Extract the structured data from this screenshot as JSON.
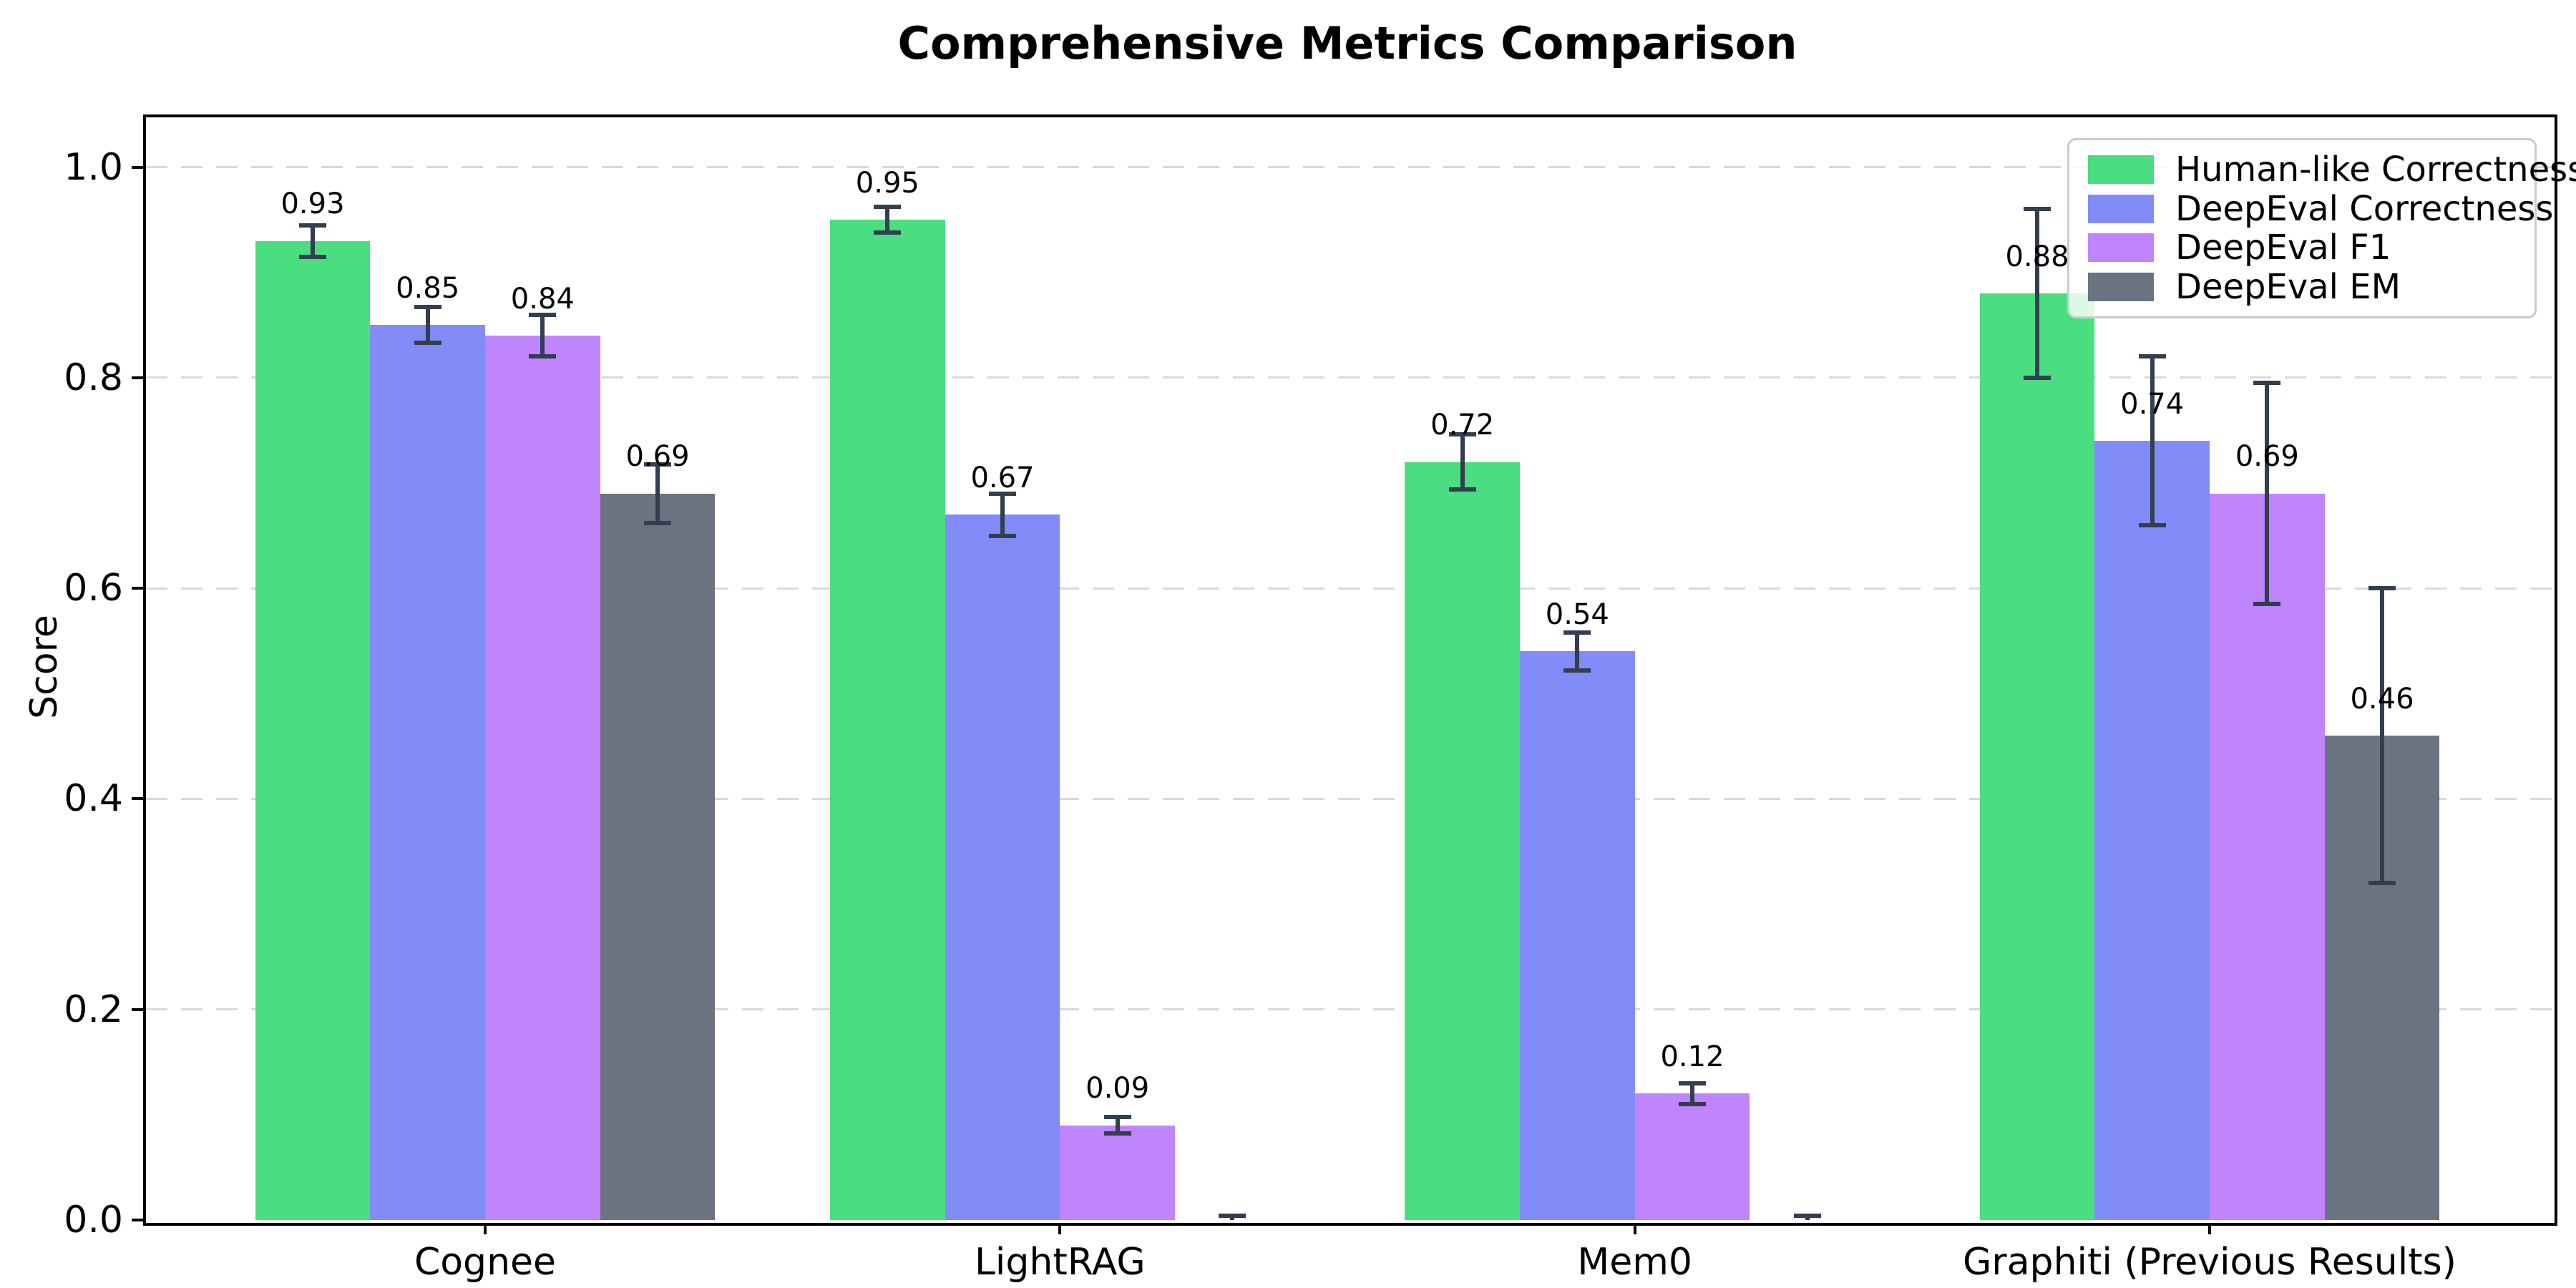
{
  "chart_data": {
    "type": "bar",
    "title": "Comprehensive Metrics Comparison",
    "xlabel": "",
    "ylabel": "Score",
    "ylim": [
      0,
      1.05
    ],
    "yticks": {
      "values": [
        0.0,
        0.2,
        0.4,
        0.6,
        0.8,
        1.0
      ],
      "labels": [
        "0.0",
        "0.2",
        "0.4",
        "0.6",
        "0.8",
        "1.0"
      ]
    },
    "grid": "horizontal-dashed",
    "legend_position": "upper-right",
    "categories": [
      "Cognee",
      "LightRAG",
      "Mem0",
      "Graphiti (Previous Results)"
    ],
    "series": [
      {
        "name": "Human-like Correctness",
        "color": "#4ade80",
        "values": [
          0.93,
          0.95,
          0.72,
          0.88
        ],
        "errors": [
          0.015,
          0.012,
          0.026,
          0.08
        ],
        "labels": [
          "0.93",
          "0.95",
          "0.72",
          "0.88"
        ]
      },
      {
        "name": "DeepEval Correctness",
        "color": "#818cf8",
        "values": [
          0.85,
          0.67,
          0.54,
          0.74
        ],
        "errors": [
          0.017,
          0.02,
          0.018,
          0.08
        ],
        "labels": [
          "0.85",
          "0.67",
          "0.54",
          "0.74"
        ]
      },
      {
        "name": "DeepEval F1",
        "color": "#c084fc",
        "values": [
          0.84,
          0.09,
          0.12,
          0.69
        ],
        "errors": [
          0.02,
          0.008,
          0.01,
          0.105
        ],
        "labels": [
          "0.84",
          "0.09",
          "0.12",
          "0.69"
        ]
      },
      {
        "name": "DeepEval EM",
        "color": "#6b7280",
        "values": [
          0.69,
          0.0,
          0.0,
          0.46
        ],
        "errors": [
          0.028,
          0.004,
          0.004,
          0.14
        ],
        "labels": [
          "0.69",
          "",
          "",
          "0.46"
        ]
      }
    ],
    "error_bar_color": "#333e50",
    "background_color": "#ffffff"
  }
}
